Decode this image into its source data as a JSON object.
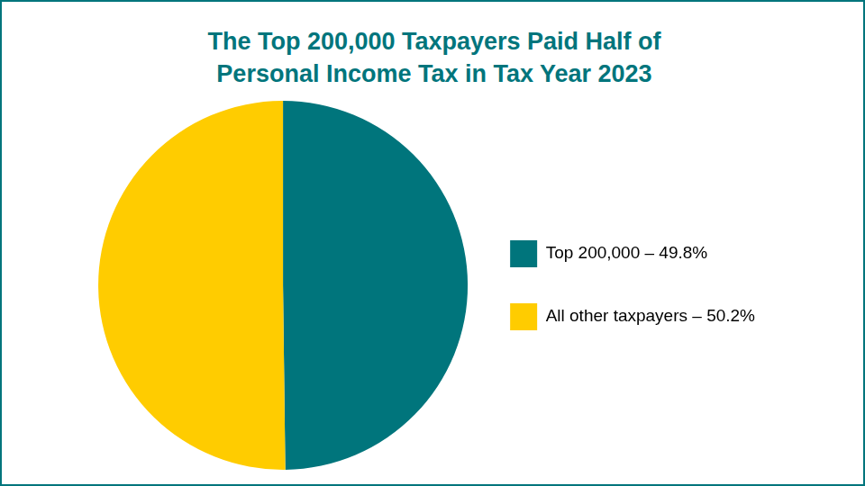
{
  "chart_data": {
    "type": "pie",
    "title": "The Top 200,000 Taxpayers Paid Half of Personal Income Tax in Tax Year 2023",
    "categories": [
      "Top 200,000 – 49.8%",
      "All other taxpayers – 50.2%"
    ],
    "values": [
      49.8,
      50.2
    ],
    "colors": [
      "#00757c",
      "#ffcc00"
    ],
    "legend": "right"
  }
}
